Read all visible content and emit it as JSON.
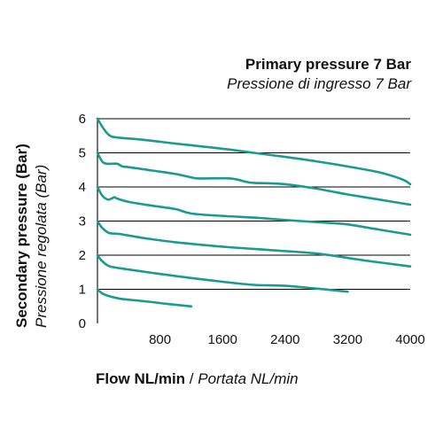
{
  "chart_data": {
    "type": "line",
    "title": "Primary pressure 7 Bar",
    "subtitle": "Pressione di ingresso 7 Bar",
    "xlabel": "Flow NL/min",
    "xlabel_italic": "Portata NL/min",
    "xlabel_separator": "/",
    "ylabel": "Secondary pressure (Bar)",
    "ylabel_italic": "Pressione regolata (Bar)",
    "xlim": [
      0,
      4000
    ],
    "ylim": [
      0,
      6
    ],
    "xticks": [
      "800",
      "1600",
      "2400",
      "3200",
      "4000"
    ],
    "yticks": [
      "0",
      "1",
      "2",
      "3",
      "4",
      "5",
      "6"
    ],
    "grid": "horizontal",
    "color": "#1a9b8f",
    "series": [
      {
        "x": [
          0,
          60,
          150,
          300,
          600,
          900,
          1200
        ],
        "y": [
          1.0,
          0.88,
          0.8,
          0.72,
          0.65,
          0.57,
          0.5
        ]
      },
      {
        "x": [
          0,
          50,
          130,
          200,
          400,
          800,
          1200,
          1600,
          2000,
          2400,
          2800,
          3200
        ],
        "y": [
          2.0,
          1.85,
          1.7,
          1.65,
          1.58,
          1.45,
          1.33,
          1.22,
          1.13,
          1.1,
          1.02,
          0.93
        ]
      },
      {
        "x": [
          0,
          60,
          150,
          280,
          600,
          1000,
          1600,
          2200,
          2800,
          3400,
          4000
        ],
        "y": [
          3.0,
          2.8,
          2.65,
          2.62,
          2.5,
          2.38,
          2.25,
          2.15,
          2.05,
          1.85,
          1.67
        ]
      },
      {
        "x": [
          0,
          60,
          130,
          180,
          220,
          250,
          400,
          700,
          1000,
          1200,
          1600,
          2000,
          2400,
          2800,
          3200,
          3600,
          4000
        ],
        "y": [
          4.0,
          3.75,
          3.63,
          3.66,
          3.7,
          3.66,
          3.56,
          3.45,
          3.35,
          3.22,
          3.15,
          3.1,
          3.03,
          2.97,
          2.9,
          2.75,
          2.6
        ]
      },
      {
        "x": [
          0,
          60,
          120,
          250,
          320,
          400,
          700,
          1000,
          1200,
          1300,
          1700,
          1900,
          2000,
          2400,
          2800,
          3200,
          3600,
          4000
        ],
        "y": [
          5.0,
          4.75,
          4.68,
          4.68,
          4.6,
          4.58,
          4.48,
          4.38,
          4.28,
          4.25,
          4.25,
          4.15,
          4.12,
          4.08,
          3.95,
          3.78,
          3.63,
          3.48
        ]
      },
      {
        "x": [
          0,
          80,
          150,
          250,
          600,
          1000,
          1600,
          2000,
          2400,
          2800,
          3200,
          3600,
          3900,
          4000
        ],
        "y": [
          6.0,
          5.7,
          5.52,
          5.45,
          5.38,
          5.27,
          5.12,
          5.0,
          4.88,
          4.75,
          4.6,
          4.43,
          4.22,
          4.08
        ]
      }
    ]
  }
}
